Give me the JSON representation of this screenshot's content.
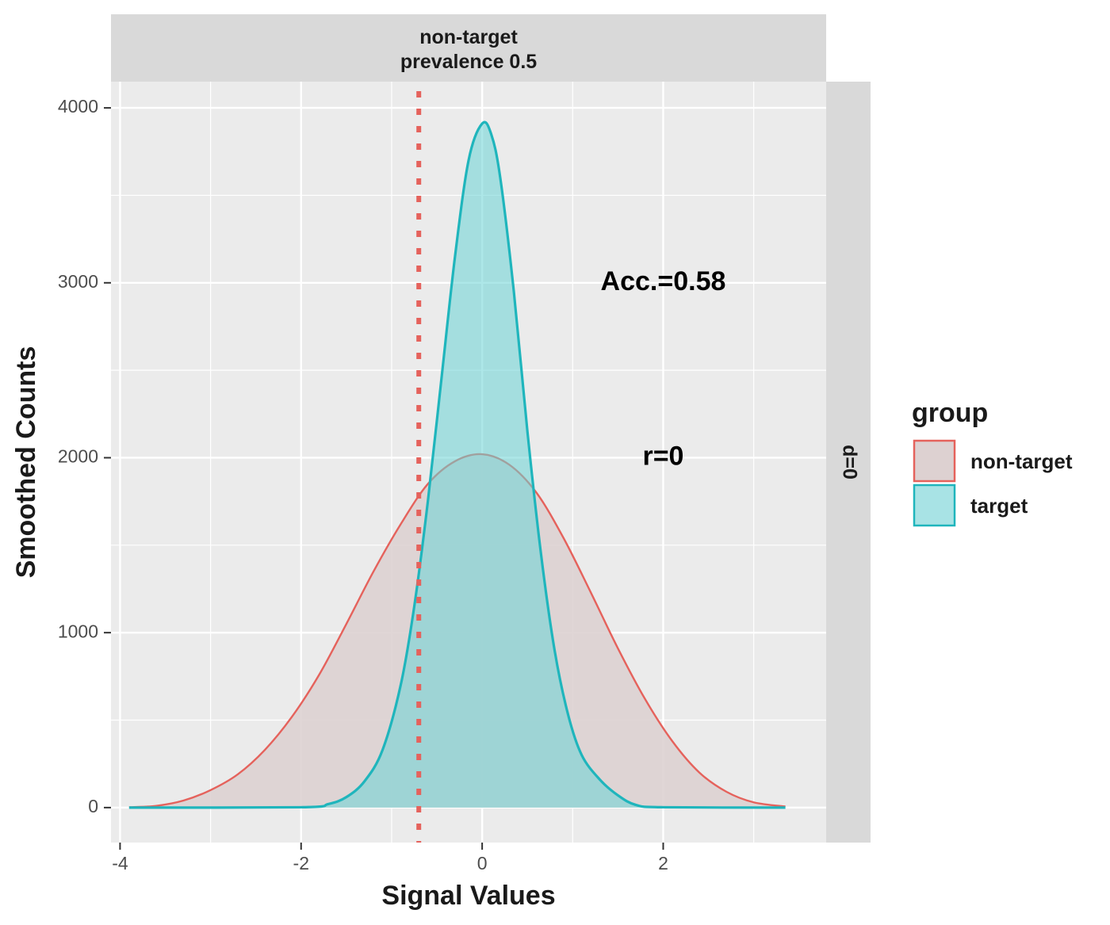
{
  "chart_data": {
    "type": "area",
    "facet_strip_top": [
      "non-target",
      "prevalence 0.5"
    ],
    "facet_strip_right": "d=0",
    "xlabel": "Signal Values",
    "ylabel": "Smoothed Counts",
    "xlim": [
      -4.1,
      3.8
    ],
    "ylim": [
      -200,
      4150
    ],
    "x_ticks": [
      -4,
      -2,
      0,
      2
    ],
    "x_tick_labels": [
      "-4",
      "-2",
      "0",
      "2"
    ],
    "y_ticks": [
      0,
      1000,
      2000,
      3000,
      4000
    ],
    "y_tick_labels": [
      "0",
      "1000",
      "2000",
      "3000",
      "4000"
    ],
    "grid": true,
    "threshold_line": {
      "x": -0.7,
      "style": "dotted",
      "color": "#E5625C"
    },
    "annotations": [
      {
        "text": "Acc.=0.58",
        "x": 2.0,
        "y": 3000
      },
      {
        "text": "r=0",
        "x": 2.0,
        "y": 2000
      }
    ],
    "legend": {
      "title": "group",
      "position": "right"
    },
    "series": [
      {
        "name": "non-target",
        "line_color": "#E5625C",
        "fill_color": "#DDD1D1",
        "x": [
          -3.9,
          -3.6,
          -3.3,
          -3.0,
          -2.7,
          -2.4,
          -2.1,
          -1.8,
          -1.5,
          -1.2,
          -0.9,
          -0.6,
          -0.3,
          0.0,
          0.3,
          0.6,
          0.9,
          1.2,
          1.5,
          1.8,
          2.1,
          2.4,
          2.7,
          3.0,
          3.35
        ],
        "y": [
          2,
          10,
          40,
          100,
          190,
          330,
          520,
          760,
          1050,
          1350,
          1620,
          1850,
          1980,
          2020,
          1960,
          1800,
          1540,
          1230,
          910,
          620,
          380,
          200,
          90,
          30,
          6
        ]
      },
      {
        "name": "target",
        "line_color": "#1FB5BC",
        "fill_color": "#6AD3D6",
        "x": [
          -3.9,
          -2.0,
          -1.7,
          -1.5,
          -1.3,
          -1.1,
          -0.9,
          -0.75,
          -0.6,
          -0.45,
          -0.3,
          -0.15,
          0.0,
          0.1,
          0.2,
          0.35,
          0.5,
          0.65,
          0.8,
          0.95,
          1.1,
          1.3,
          1.5,
          1.7,
          2.0,
          3.35
        ],
        "y": [
          0,
          2,
          20,
          60,
          150,
          330,
          700,
          1150,
          1750,
          2450,
          3150,
          3700,
          3910,
          3850,
          3600,
          2950,
          2150,
          1450,
          900,
          530,
          300,
          160,
          70,
          15,
          2,
          0
        ]
      }
    ]
  }
}
